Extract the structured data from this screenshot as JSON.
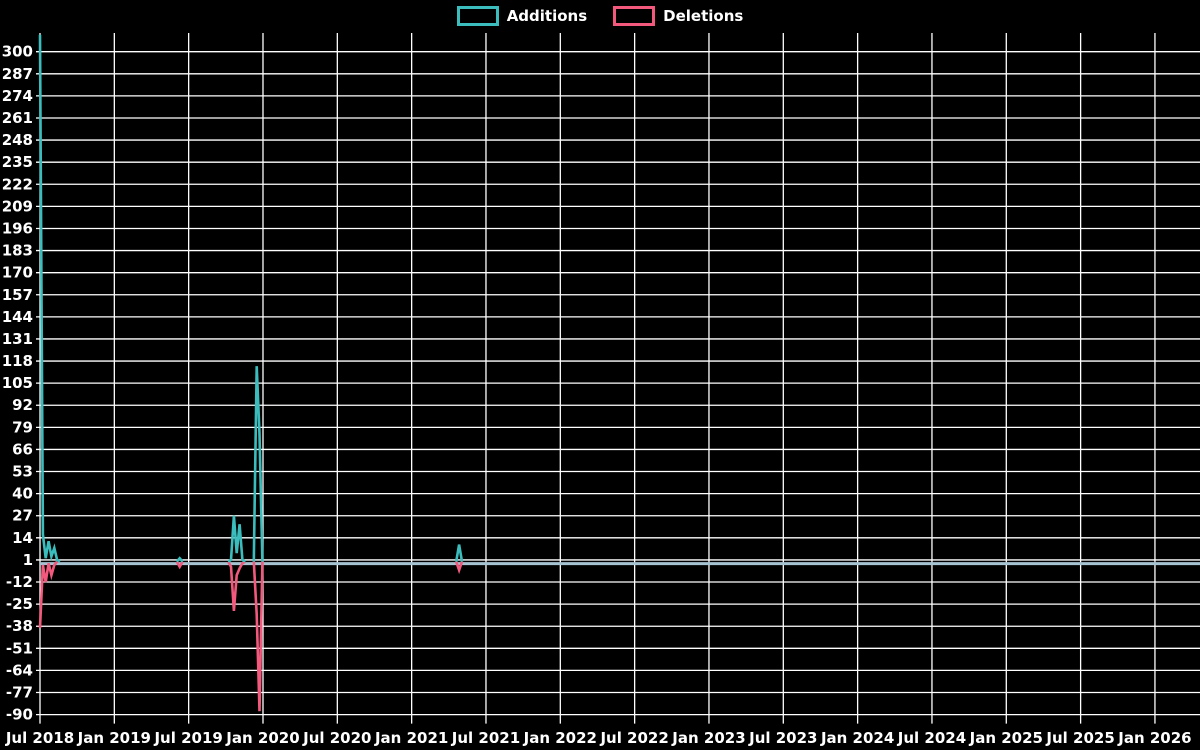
{
  "legend": {
    "additions_label": "Additions",
    "deletions_label": "Deletions"
  },
  "colors": {
    "background": "#000000",
    "grid": "#ffffff",
    "text": "#ffffff",
    "additions": "#3bbdbd",
    "deletions": "#f2597c",
    "zero_baseline": "#a6c3d1"
  },
  "chart_data": {
    "type": "line",
    "title": "",
    "legend_position": "top-center",
    "grid": true,
    "x_axis": {
      "start_week_date": "2018-07-01",
      "weeks_total": 407,
      "tick_labels": [
        "Jul 2018",
        "Jan 2019",
        "Jul 2019",
        "Jan 2020",
        "Jul 2020",
        "Jan 2021",
        "Jul 2021",
        "Jan 2022",
        "Jul 2022",
        "Jan 2023",
        "Jul 2023",
        "Jan 2024",
        "Jul 2024",
        "Jan 2025",
        "Jul 2025",
        "Jan 2026"
      ]
    },
    "y_axis": {
      "min": -90,
      "max": 300,
      "step": 13,
      "tick_labels": [
        300,
        287,
        274,
        261,
        248,
        235,
        222,
        209,
        196,
        183,
        170,
        157,
        144,
        131,
        118,
        105,
        92,
        79,
        66,
        53,
        40,
        27,
        14,
        1,
        -12,
        -25,
        -38,
        -51,
        -64,
        -77,
        -90
      ]
    },
    "series": [
      {
        "name": "Additions",
        "color": "#3bbdbd",
        "baseline_value": 0,
        "events": [
          {
            "week": 0,
            "value": 310,
            "approx_date": "2018-07-01"
          },
          {
            "week": 1,
            "value": 16,
            "approx_date": "2018-07-08"
          },
          {
            "week": 2,
            "value": 2,
            "approx_date": "2018-07-15"
          },
          {
            "week": 3,
            "value": 12,
            "approx_date": "2018-07-22"
          },
          {
            "week": 4,
            "value": 3,
            "approx_date": "2018-07-29"
          },
          {
            "week": 5,
            "value": 8,
            "approx_date": "2018-08-05"
          },
          {
            "week": 6,
            "value": 1,
            "approx_date": "2018-08-12"
          },
          {
            "week": 49,
            "value": 2,
            "approx_date": "2019-06-09"
          },
          {
            "week": 67,
            "value": 1,
            "approx_date": "2019-10-13"
          },
          {
            "week": 68,
            "value": 27,
            "approx_date": "2019-10-20"
          },
          {
            "week": 69,
            "value": 5,
            "approx_date": "2019-10-27"
          },
          {
            "week": 70,
            "value": 22,
            "approx_date": "2019-11-03"
          },
          {
            "week": 71,
            "value": 1,
            "approx_date": "2019-11-10"
          },
          {
            "week": 76,
            "value": 115,
            "approx_date": "2019-12-15"
          },
          {
            "week": 77,
            "value": 75,
            "approx_date": "2019-12-22"
          },
          {
            "week": 147,
            "value": 10,
            "approx_date": "2021-04-25"
          }
        ]
      },
      {
        "name": "Deletions",
        "color": "#f2597c",
        "baseline_value": 0,
        "events": [
          {
            "week": 0,
            "value": -39,
            "approx_date": "2018-07-01"
          },
          {
            "week": 1,
            "value": -2,
            "approx_date": "2018-07-08"
          },
          {
            "week": 2,
            "value": -12,
            "approx_date": "2018-07-15"
          },
          {
            "week": 3,
            "value": -1,
            "approx_date": "2018-07-22"
          },
          {
            "week": 4,
            "value": -8,
            "approx_date": "2018-07-29"
          },
          {
            "week": 5,
            "value": -2,
            "approx_date": "2018-08-05"
          },
          {
            "week": 49,
            "value": -3,
            "approx_date": "2019-06-09"
          },
          {
            "week": 67,
            "value": -3,
            "approx_date": "2019-10-13"
          },
          {
            "week": 68,
            "value": -29,
            "approx_date": "2019-10-20"
          },
          {
            "week": 69,
            "value": -8,
            "approx_date": "2019-10-27"
          },
          {
            "week": 70,
            "value": -4,
            "approx_date": "2019-11-03"
          },
          {
            "week": 71,
            "value": -1,
            "approx_date": "2019-11-10"
          },
          {
            "week": 76,
            "value": -31,
            "approx_date": "2019-12-15"
          },
          {
            "week": 77,
            "value": -88,
            "approx_date": "2019-12-22"
          },
          {
            "week": 147,
            "value": -5,
            "approx_date": "2021-04-25"
          }
        ]
      }
    ]
  }
}
